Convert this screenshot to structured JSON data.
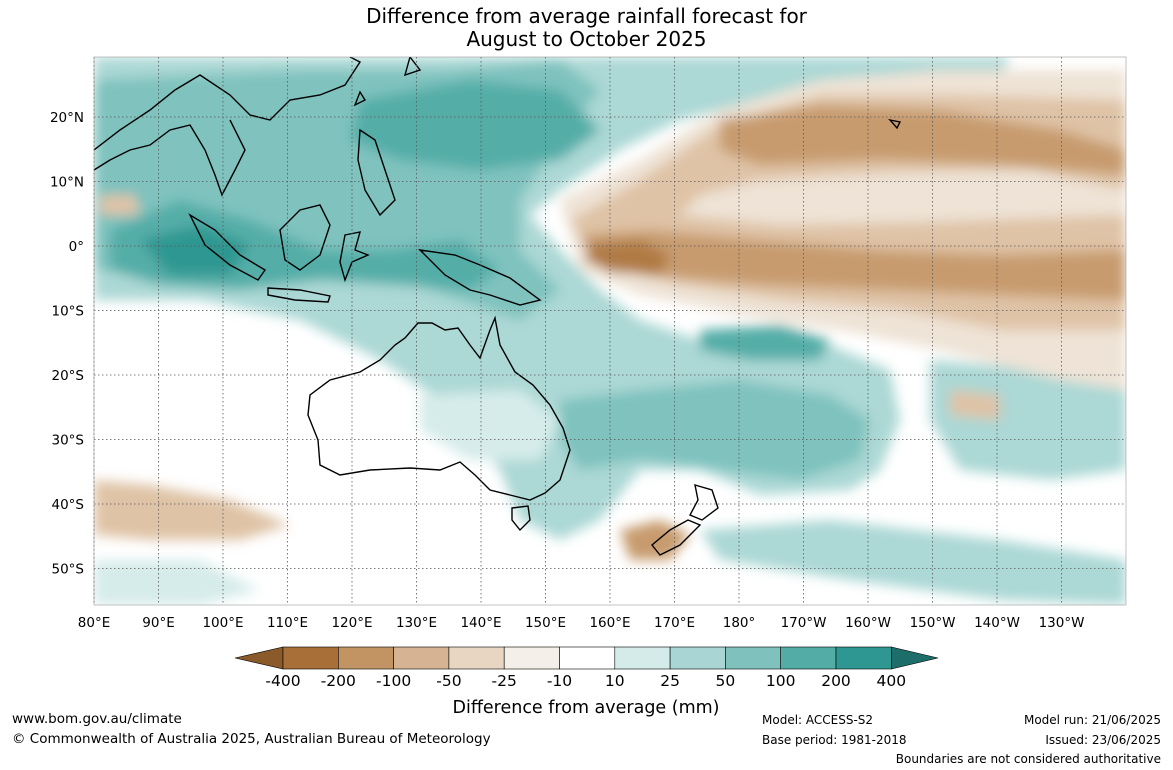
{
  "title_line1": "Difference from average rainfall forecast for",
  "title_line2": "August to October 2025",
  "lat_labels": [
    "20°N",
    "10°N",
    "0°",
    "10°S",
    "20°S",
    "30°S",
    "40°S",
    "50°S"
  ],
  "lat_values": [
    20,
    10,
    0,
    -10,
    -20,
    -30,
    -40,
    -50
  ],
  "lon_labels": [
    "80°E",
    "90°E",
    "100°E",
    "110°E",
    "120°E",
    "130°E",
    "140°E",
    "150°E",
    "160°E",
    "170°E",
    "180°",
    "170°W",
    "160°W",
    "150°W",
    "140°W",
    "130°W"
  ],
  "lon_values": [
    80,
    90,
    100,
    110,
    120,
    130,
    140,
    150,
    160,
    170,
    180,
    190,
    200,
    210,
    220,
    230
  ],
  "legend": {
    "title": "Difference from average (mm)",
    "labels": [
      "-400",
      "-200",
      "-100",
      "-50",
      "-25",
      "-10",
      "10",
      "25",
      "50",
      "100",
      "200",
      "400"
    ],
    "colors": [
      "#8a5a2a",
      "#a87038",
      "#c29464",
      "#d5b393",
      "#e8d6c2",
      "#f4efe8",
      "#ffffff",
      "#d4ebe9",
      "#a9d6d4",
      "#7fc1bd",
      "#54aca7",
      "#2e9791",
      "#1d6e6a"
    ]
  },
  "palette": {
    "dry_strong": "#b07a45",
    "dry_mid": "#c79b6e",
    "dry_light": "#dfc3a6",
    "dry_faint": "#eee3d6",
    "wet_faint": "#d6ecea",
    "wet_light": "#acd8d5",
    "wet_mid": "#7fc2be",
    "wet_strong": "#55ada8",
    "wet_deep": "#2e9791",
    "coast": "#000000",
    "grid": "#555555"
  },
  "footer": {
    "url": "www.bom.gov.au/climate",
    "copyright": "© Commonwealth of Australia 2025, Australian Bureau of Meteorology",
    "model": "Model: ACCESS-S2",
    "base": "Base period: 1981-2018",
    "run": "Model run: 21/06/2025",
    "issued": "Issued: 23/06/2025",
    "disclaimer": "Boundaries are not considered authoritative"
  }
}
